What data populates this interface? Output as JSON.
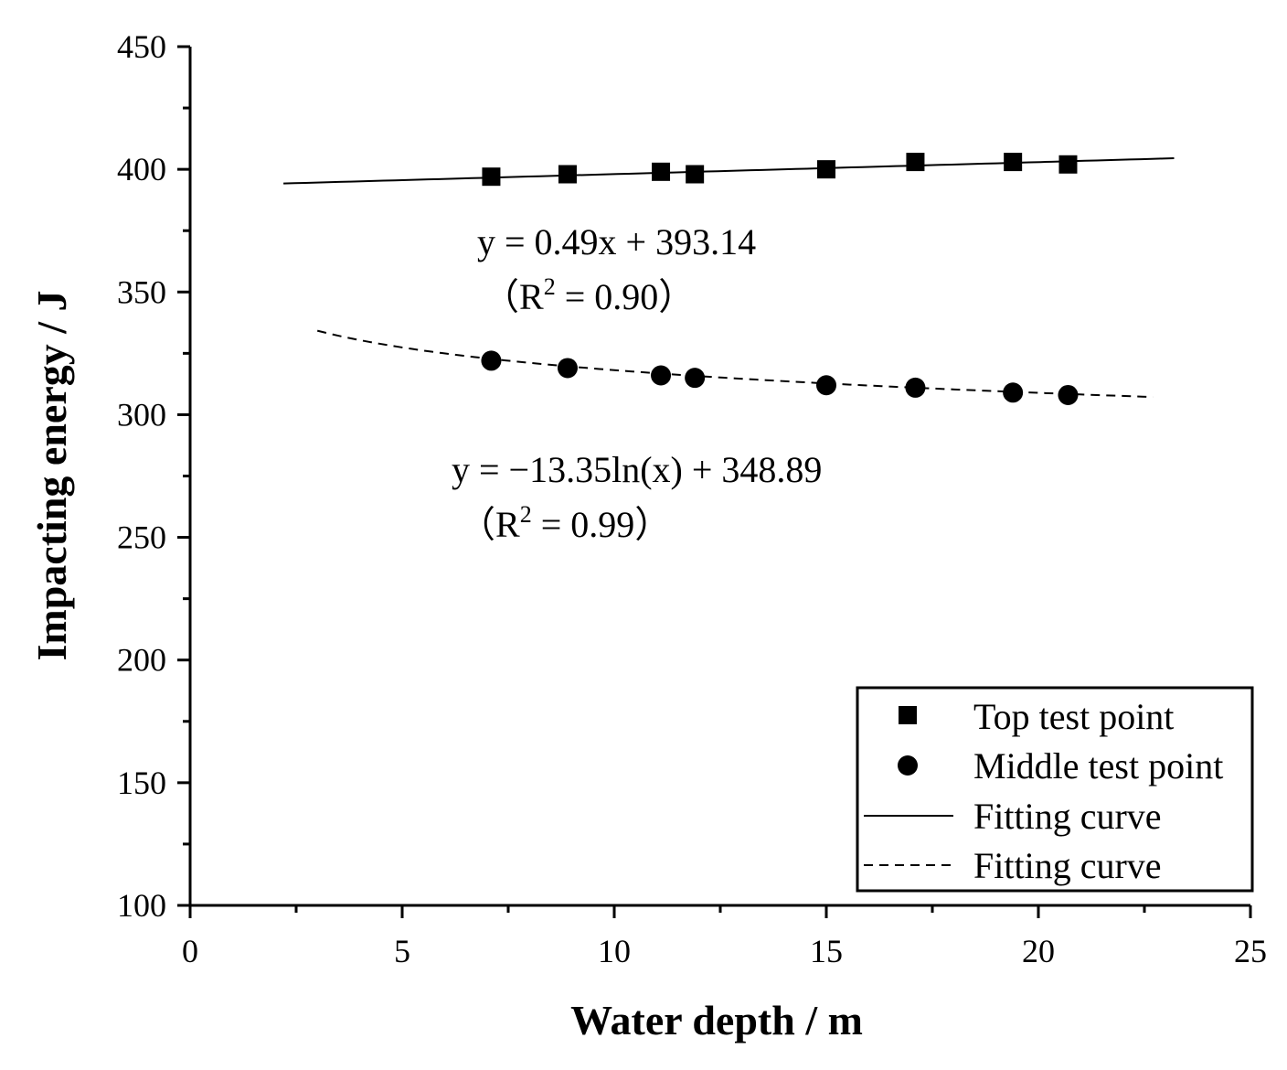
{
  "chart_data": {
    "type": "scatter",
    "title": "",
    "xlabel": "Water depth / m",
    "ylabel": "Impacting energy / J",
    "xlim": [
      0,
      25
    ],
    "ylim": [
      100,
      450
    ],
    "x_ticks": [
      0,
      5,
      10,
      15,
      20,
      25
    ],
    "y_ticks": [
      100,
      150,
      200,
      250,
      300,
      350,
      400,
      450
    ],
    "x_tick_labels": [
      "0",
      "5",
      "10",
      "15",
      "20",
      "25"
    ],
    "y_tick_labels": [
      "100",
      "150",
      "200",
      "250",
      "300",
      "350",
      "400",
      "450"
    ],
    "grid": false,
    "legend_position": "bottom-right",
    "series": [
      {
        "name": "Top test point",
        "marker": "square",
        "x": [
          7.1,
          8.9,
          11.1,
          11.9,
          15.0,
          17.1,
          19.4,
          20.7
        ],
        "y": [
          397,
          398,
          399,
          398,
          400,
          403,
          403,
          402
        ]
      },
      {
        "name": "Middle test point",
        "marker": "circle",
        "x": [
          7.1,
          8.9,
          11.1,
          11.9,
          15.0,
          17.1,
          19.4,
          20.7
        ],
        "y": [
          322,
          319,
          316,
          315,
          312,
          311,
          309,
          308
        ]
      }
    ],
    "fits": [
      {
        "name": "Fitting curve",
        "style": "solid",
        "model": "linear",
        "slope": 0.49,
        "intercept": 393.14,
        "x_range": [
          2.2,
          23.2
        ],
        "equation": "y = 0.49x + 393.14",
        "r2_label": "（R",
        "r2_sup": "2",
        "r2_value": " = 0.90）"
      },
      {
        "name": "Fitting curve",
        "style": "dashed",
        "model": "logarithmic",
        "coef": -13.35,
        "intercept": 348.89,
        "x_range": [
          3.0,
          22.7
        ],
        "equation": "y = −13.35ln(x) + 348.89",
        "r2_label": "（R",
        "r2_sup": "2",
        "r2_value": " = 0.99）"
      }
    ],
    "legend": [
      {
        "label": "Top test point",
        "symbol": "square"
      },
      {
        "label": "Middle test point",
        "symbol": "circle"
      },
      {
        "label": "Fitting curve",
        "symbol": "solid-line"
      },
      {
        "label": "Fitting curve",
        "symbol": "dashed-line"
      }
    ]
  }
}
